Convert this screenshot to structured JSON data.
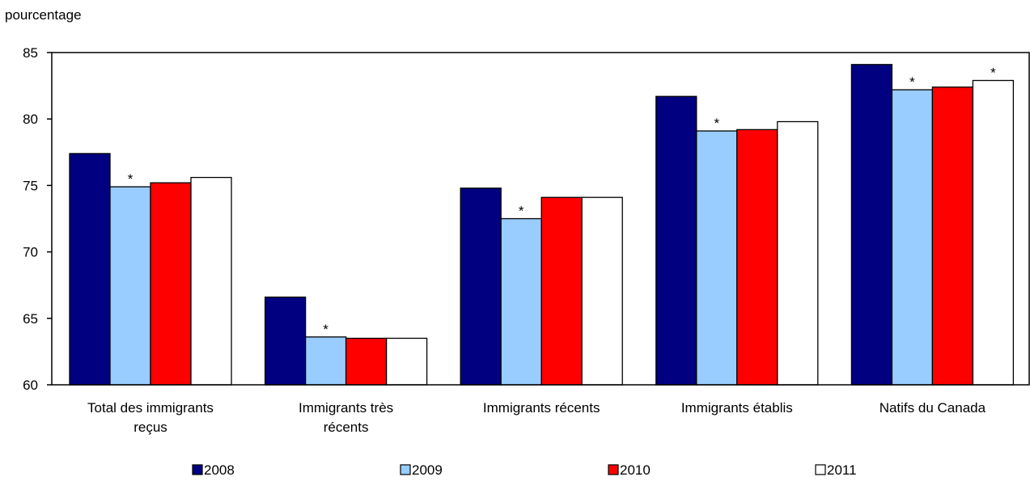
{
  "chart_data": {
    "type": "bar",
    "ylabel": "pourcentage",
    "ylim": [
      60,
      85
    ],
    "yticks": [
      "85",
      "80",
      "75",
      "70",
      "65",
      "60"
    ],
    "categories": [
      [
        "Total des immigrants",
        "reçus"
      ],
      [
        "Immigrants très",
        "récents"
      ],
      [
        "Immigrants récents"
      ],
      [
        "Immigrants établis"
      ],
      [
        "Natifs du Canada"
      ]
    ],
    "series": [
      {
        "name": "2008",
        "color": "#000080",
        "values": [
          77.4,
          66.6,
          74.8,
          81.7,
          84.1
        ]
      },
      {
        "name": "2009",
        "color": "#99CCFF",
        "values": [
          74.9,
          63.6,
          72.5,
          79.1,
          82.2
        ]
      },
      {
        "name": "2010",
        "color": "#FF0000",
        "values": [
          75.2,
          63.5,
          74.1,
          79.2,
          82.4
        ]
      },
      {
        "name": "2011",
        "color": "#FFFFFF",
        "values": [
          75.6,
          63.5,
          74.1,
          79.8,
          82.9
        ]
      }
    ],
    "annotations": [
      {
        "series": 1,
        "category": 0,
        "text": "*"
      },
      {
        "series": 1,
        "category": 1,
        "text": "*"
      },
      {
        "series": 1,
        "category": 2,
        "text": "*"
      },
      {
        "series": 1,
        "category": 3,
        "text": "*"
      },
      {
        "series": 1,
        "category": 4,
        "text": "*"
      },
      {
        "series": 3,
        "category": 4,
        "text": "*"
      }
    ],
    "legend_position": "bottom",
    "grid": false
  }
}
